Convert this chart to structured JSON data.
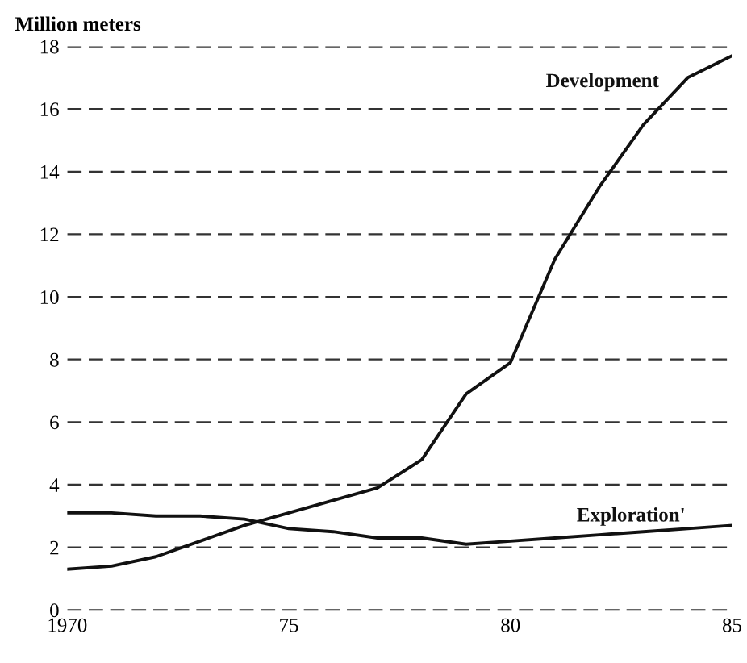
{
  "chart_data": {
    "type": "line",
    "ylabel": "Million meters",
    "x": [
      1970,
      1971,
      1972,
      1973,
      1974,
      1975,
      1976,
      1977,
      1978,
      1979,
      1980,
      1981,
      1982,
      1983,
      1984,
      1985
    ],
    "series": [
      {
        "name": "Development",
        "color": "#111111",
        "values": [
          1.3,
          1.4,
          1.7,
          2.2,
          2.7,
          3.1,
          3.5,
          3.9,
          4.8,
          6.9,
          7.9,
          11.2,
          13.5,
          15.5,
          17.0,
          17.7
        ]
      },
      {
        "name": "Exploration'",
        "color": "#111111",
        "values": [
          3.1,
          3.1,
          3.0,
          3.0,
          2.9,
          2.6,
          2.5,
          2.3,
          2.3,
          2.1,
          2.2,
          2.3,
          2.4,
          2.5,
          2.6,
          2.7
        ]
      }
    ],
    "xlim": [
      1970,
      1985
    ],
    "xticks": [
      1970,
      {
        "value": 1975,
        "label": "75"
      },
      {
        "value": 1980,
        "label": "80"
      },
      {
        "value": 1985,
        "label": "85"
      }
    ],
    "ylim": [
      0,
      18
    ],
    "yticks": [
      0,
      2,
      4,
      6,
      8,
      10,
      12,
      14,
      16,
      18
    ],
    "grid": "y",
    "line_style": "solid",
    "marker": "none",
    "legend": false
  }
}
